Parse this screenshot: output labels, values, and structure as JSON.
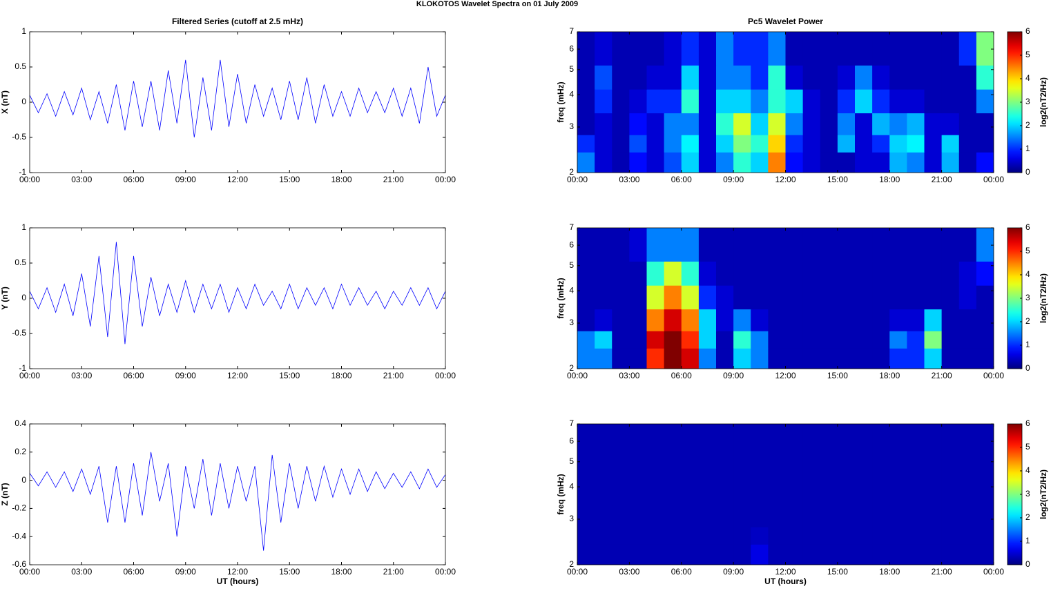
{
  "title": "KLOKOTOS Wavelet Spectra on 01 July      2009",
  "chart_data": [
    {
      "type": "line",
      "title": "Filtered Series (cutoff at 2.5 mHz)",
      "ylabel": "X (nT)",
      "color": "#0000ff",
      "x": [
        0,
        0.5,
        1,
        1.5,
        2,
        2.5,
        3,
        3.5,
        4,
        4.5,
        5,
        5.5,
        6,
        6.5,
        7,
        7.5,
        8,
        8.5,
        9,
        9.5,
        10,
        10.5,
        11,
        11.5,
        12,
        12.5,
        13,
        13.5,
        14,
        14.5,
        15,
        15.5,
        16,
        16.5,
        17,
        17.5,
        18,
        18.5,
        19,
        19.5,
        20,
        20.5,
        21,
        21.5,
        22,
        22.5,
        23,
        23.5,
        24
      ],
      "values": [
        0.1,
        -0.15,
        0.12,
        -0.2,
        0.15,
        -0.18,
        0.2,
        -0.25,
        0.15,
        -0.3,
        0.25,
        -0.4,
        0.3,
        -0.35,
        0.3,
        -0.4,
        0.45,
        -0.3,
        0.6,
        -0.5,
        0.35,
        -0.4,
        0.6,
        -0.35,
        0.4,
        -0.3,
        0.25,
        -0.2,
        0.2,
        -0.25,
        0.3,
        -0.25,
        0.35,
        -0.3,
        0.25,
        -0.2,
        0.15,
        -0.2,
        0.2,
        -0.15,
        0.15,
        -0.15,
        0.2,
        -0.2,
        0.2,
        -0.3,
        0.5,
        -0.2,
        0.1
      ],
      "xlim": [
        0,
        24
      ],
      "xticks": [
        {
          "value": 0,
          "label": "00:00"
        },
        {
          "value": 3,
          "label": "03:00"
        },
        {
          "value": 6,
          "label": "06:00"
        },
        {
          "value": 9,
          "label": "09:00"
        },
        {
          "value": 12,
          "label": "12:00"
        },
        {
          "value": 15,
          "label": "15:00"
        },
        {
          "value": 18,
          "label": "18:00"
        },
        {
          "value": 21,
          "label": "21:00"
        },
        {
          "value": 24,
          "label": "00:00"
        }
      ],
      "ylim": [
        -1,
        1
      ],
      "yticks": [
        -1,
        -0.5,
        0,
        0.5,
        1
      ]
    },
    {
      "type": "heatmap",
      "title": "Pc5 Wavelet Power",
      "ylabel": "freq (mHz)",
      "colorbar_label": "log2(nT2/Hz)",
      "xbins": [
        0,
        1,
        2,
        3,
        4,
        5,
        6,
        7,
        8,
        9,
        10,
        11,
        12,
        13,
        14,
        15,
        16,
        17,
        18,
        19,
        20,
        21,
        22,
        23,
        24
      ],
      "ybins": [
        2,
        2.4,
        2.8,
        3.4,
        4.2,
        5.2,
        7
      ],
      "values": [
        [
          1.5,
          0.5,
          0.3,
          0.8,
          0.5,
          1.2,
          2.0,
          0.5,
          1.5,
          2.5,
          2.0,
          4.5,
          0.8,
          0.5,
          0.3,
          0.3,
          0.5,
          0.5,
          1.8,
          1.5,
          0.5,
          1.8,
          0.3,
          0.8
        ],
        [
          1.0,
          0.5,
          0.3,
          1.2,
          0.5,
          1.5,
          2.2,
          0.5,
          2.0,
          3.0,
          2.5,
          4.0,
          1.0,
          0.5,
          0.3,
          1.8,
          0.5,
          1.0,
          2.0,
          2.2,
          0.5,
          2.0,
          0.3,
          0.3
        ],
        [
          0.3,
          0.5,
          0.3,
          0.8,
          0.5,
          1.5,
          1.5,
          0.5,
          2.5,
          3.5,
          2.0,
          3.5,
          1.5,
          0.5,
          0.3,
          1.5,
          0.5,
          1.8,
          1.5,
          1.8,
          0.5,
          0.5,
          0.3,
          0.3
        ],
        [
          0.3,
          1.0,
          0.3,
          0.5,
          1.0,
          1.0,
          2.5,
          0.5,
          2.0,
          2.0,
          1.5,
          2.5,
          2.0,
          0.5,
          0.3,
          1.0,
          2.0,
          1.0,
          0.5,
          0.5,
          0.3,
          0.3,
          0.3,
          1.5
        ],
        [
          0.3,
          1.2,
          0.3,
          0.3,
          0.5,
          0.5,
          2.0,
          0.5,
          1.5,
          1.5,
          1.0,
          2.5,
          0.5,
          0.3,
          0.3,
          0.5,
          1.5,
          0.5,
          0.3,
          0.3,
          0.3,
          0.3,
          0.3,
          2.5
        ],
        [
          0.3,
          0.5,
          0.3,
          0.3,
          0.3,
          0.5,
          1.0,
          0.5,
          1.5,
          1.0,
          1.0,
          1.5,
          0.3,
          0.3,
          0.3,
          0.3,
          0.3,
          0.3,
          0.3,
          0.3,
          0.3,
          0.3,
          1.0,
          3.0
        ]
      ],
      "xlim": [
        0,
        24
      ],
      "xticks": [
        {
          "value": 0,
          "label": "00:00"
        },
        {
          "value": 3,
          "label": "03:00"
        },
        {
          "value": 6,
          "label": "06:00"
        },
        {
          "value": 9,
          "label": "09:00"
        },
        {
          "value": 12,
          "label": "12:00"
        },
        {
          "value": 15,
          "label": "15:00"
        },
        {
          "value": 18,
          "label": "18:00"
        },
        {
          "value": 21,
          "label": "21:00"
        },
        {
          "value": 24,
          "label": "00:00"
        }
      ],
      "ylim": [
        2,
        7
      ],
      "yticks": [
        2,
        3,
        4,
        5,
        6,
        7
      ],
      "log_y": true,
      "clim": [
        0,
        6
      ],
      "cticks": [
        0,
        1,
        2,
        3,
        4,
        5,
        6
      ],
      "colormap": "jet"
    },
    {
      "type": "line",
      "ylabel": "Y (nT)",
      "color": "#0000ff",
      "x": [
        0,
        0.5,
        1,
        1.5,
        2,
        2.5,
        3,
        3.5,
        4,
        4.5,
        5,
        5.5,
        6,
        6.5,
        7,
        7.5,
        8,
        8.5,
        9,
        9.5,
        10,
        10.5,
        11,
        11.5,
        12,
        12.5,
        13,
        13.5,
        14,
        14.5,
        15,
        15.5,
        16,
        16.5,
        17,
        17.5,
        18,
        18.5,
        19,
        19.5,
        20,
        20.5,
        21,
        21.5,
        22,
        22.5,
        23,
        23.5,
        24
      ],
      "values": [
        0.1,
        -0.15,
        0.15,
        -0.2,
        0.2,
        -0.25,
        0.35,
        -0.4,
        0.6,
        -0.55,
        0.8,
        -0.65,
        0.6,
        -0.4,
        0.3,
        -0.25,
        0.2,
        -0.2,
        0.25,
        -0.2,
        0.2,
        -0.15,
        0.2,
        -0.2,
        0.15,
        -0.15,
        0.2,
        -0.1,
        0.1,
        -0.15,
        0.2,
        -0.15,
        0.15,
        -0.1,
        0.15,
        -0.15,
        0.2,
        -0.1,
        0.15,
        -0.1,
        0.1,
        -0.15,
        0.1,
        -0.1,
        0.15,
        -0.1,
        0.15,
        -0.15,
        0.1
      ],
      "xlim": [
        0,
        24
      ],
      "xticks": [
        {
          "value": 0,
          "label": "00:00"
        },
        {
          "value": 3,
          "label": "03:00"
        },
        {
          "value": 6,
          "label": "06:00"
        },
        {
          "value": 9,
          "label": "09:00"
        },
        {
          "value": 12,
          "label": "12:00"
        },
        {
          "value": 15,
          "label": "15:00"
        },
        {
          "value": 18,
          "label": "18:00"
        },
        {
          "value": 21,
          "label": "21:00"
        },
        {
          "value": 24,
          "label": "00:00"
        }
      ],
      "ylim": [
        -1,
        1
      ],
      "yticks": [
        -1,
        -0.5,
        0,
        0.5,
        1
      ]
    },
    {
      "type": "heatmap",
      "ylabel": "freq (mHz)",
      "colorbar_label": "log2(nT2/Hz)",
      "xbins": [
        0,
        1,
        2,
        3,
        4,
        5,
        6,
        7,
        8,
        9,
        10,
        11,
        12,
        13,
        14,
        15,
        16,
        17,
        18,
        19,
        20,
        21,
        22,
        23,
        24
      ],
      "ybins": [
        2,
        2.4,
        2.8,
        3.4,
        4.2,
        5.2,
        7
      ],
      "values": [
        [
          1.5,
          1.5,
          0.3,
          0.3,
          5.0,
          6.0,
          5.5,
          1.5,
          0.3,
          2.0,
          1.5,
          0.3,
          0.3,
          0.3,
          0.3,
          0.3,
          0.3,
          0.3,
          1.0,
          1.0,
          2.0,
          0.3,
          0.3,
          0.3
        ],
        [
          1.5,
          2.0,
          0.3,
          0.3,
          5.5,
          6.0,
          5.0,
          2.0,
          0.3,
          2.5,
          1.5,
          0.3,
          0.3,
          0.3,
          0.3,
          0.3,
          0.3,
          0.3,
          1.5,
          1.0,
          3.0,
          0.3,
          0.3,
          0.3
        ],
        [
          0.3,
          0.5,
          0.3,
          0.3,
          4.5,
          5.5,
          4.5,
          2.0,
          0.5,
          1.5,
          0.5,
          0.3,
          0.3,
          0.3,
          0.3,
          0.3,
          0.3,
          0.3,
          0.5,
          0.5,
          2.0,
          0.3,
          0.3,
          0.3
        ],
        [
          0.3,
          0.3,
          0.3,
          0.3,
          3.5,
          4.5,
          3.5,
          1.0,
          0.5,
          0.3,
          0.3,
          0.3,
          0.3,
          0.3,
          0.3,
          0.3,
          0.3,
          0.3,
          0.3,
          0.3,
          0.3,
          0.3,
          0.5,
          0.3
        ],
        [
          0.3,
          0.3,
          0.3,
          0.3,
          2.5,
          3.5,
          2.5,
          0.5,
          0.3,
          0.3,
          0.3,
          0.3,
          0.3,
          0.3,
          0.3,
          0.3,
          0.3,
          0.3,
          0.3,
          0.3,
          0.3,
          0.3,
          0.5,
          0.8
        ],
        [
          0.3,
          0.3,
          0.3,
          0.5,
          1.5,
          1.5,
          1.5,
          0.3,
          0.3,
          0.3,
          0.3,
          0.3,
          0.3,
          0.3,
          0.3,
          0.3,
          0.3,
          0.3,
          0.3,
          0.3,
          0.3,
          0.3,
          0.3,
          1.5
        ]
      ],
      "xlim": [
        0,
        24
      ],
      "xticks": [
        {
          "value": 0,
          "label": "00:00"
        },
        {
          "value": 3,
          "label": "03:00"
        },
        {
          "value": 6,
          "label": "06:00"
        },
        {
          "value": 9,
          "label": "09:00"
        },
        {
          "value": 12,
          "label": "12:00"
        },
        {
          "value": 15,
          "label": "15:00"
        },
        {
          "value": 18,
          "label": "18:00"
        },
        {
          "value": 21,
          "label": "21:00"
        },
        {
          "value": 24,
          "label": "00:00"
        }
      ],
      "ylim": [
        2,
        7
      ],
      "yticks": [
        2,
        3,
        4,
        5,
        6,
        7
      ],
      "log_y": true,
      "clim": [
        0,
        6
      ],
      "cticks": [
        0,
        1,
        2,
        3,
        4,
        5,
        6
      ],
      "colormap": "jet"
    },
    {
      "type": "line",
      "ylabel": "Z (nT)",
      "xlabel": "UT (hours)",
      "color": "#0000ff",
      "x": [
        0,
        0.5,
        1,
        1.5,
        2,
        2.5,
        3,
        3.5,
        4,
        4.5,
        5,
        5.5,
        6,
        6.5,
        7,
        7.5,
        8,
        8.5,
        9,
        9.5,
        10,
        10.5,
        11,
        11.5,
        12,
        12.5,
        13,
        13.5,
        14,
        14.5,
        15,
        15.5,
        16,
        16.5,
        17,
        17.5,
        18,
        18.5,
        19,
        19.5,
        20,
        20.5,
        21,
        21.5,
        22,
        22.5,
        23,
        23.5,
        24
      ],
      "values": [
        0.05,
        -0.04,
        0.06,
        -0.05,
        0.06,
        -0.08,
        0.08,
        -0.1,
        0.1,
        -0.3,
        0.1,
        -0.3,
        0.12,
        -0.25,
        0.2,
        -0.15,
        0.12,
        -0.4,
        0.1,
        -0.2,
        0.15,
        -0.25,
        0.12,
        -0.2,
        0.1,
        -0.15,
        0.1,
        -0.5,
        0.18,
        -0.3,
        0.12,
        -0.2,
        0.1,
        -0.15,
        0.1,
        -0.12,
        0.08,
        -0.1,
        0.08,
        -0.08,
        0.06,
        -0.06,
        0.05,
        -0.05,
        0.06,
        -0.06,
        0.08,
        -0.05,
        0.04
      ],
      "xlim": [
        0,
        24
      ],
      "xticks": [
        {
          "value": 0,
          "label": "00:00"
        },
        {
          "value": 3,
          "label": "03:00"
        },
        {
          "value": 6,
          "label": "06:00"
        },
        {
          "value": 9,
          "label": "09:00"
        },
        {
          "value": 12,
          "label": "12:00"
        },
        {
          "value": 15,
          "label": "15:00"
        },
        {
          "value": 18,
          "label": "18:00"
        },
        {
          "value": 21,
          "label": "21:00"
        },
        {
          "value": 24,
          "label": "00:00"
        }
      ],
      "ylim": [
        -0.6,
        0.4
      ],
      "yticks": [
        -0.6,
        -0.4,
        -0.2,
        0,
        0.2,
        0.4
      ]
    },
    {
      "type": "heatmap",
      "ylabel": "freq (mHz)",
      "xlabel": "UT (hours)",
      "colorbar_label": "log2(nT2/Hz)",
      "xbins": [
        0,
        1,
        2,
        3,
        4,
        5,
        6,
        7,
        8,
        9,
        10,
        11,
        12,
        13,
        14,
        15,
        16,
        17,
        18,
        19,
        20,
        21,
        22,
        23,
        24
      ],
      "ybins": [
        2,
        2.4,
        2.8,
        3.4,
        4.2,
        5.2,
        7
      ],
      "values": [
        [
          0.3,
          0.3,
          0.3,
          0.3,
          0.3,
          0.3,
          0.3,
          0.3,
          0.3,
          0.3,
          0.6,
          0.3,
          0.3,
          0.3,
          0.3,
          0.3,
          0.3,
          0.3,
          0.3,
          0.3,
          0.3,
          0.3,
          0.3,
          0.3
        ],
        [
          0.3,
          0.3,
          0.3,
          0.3,
          0.3,
          0.3,
          0.3,
          0.3,
          0.3,
          0.3,
          0.4,
          0.3,
          0.3,
          0.3,
          0.3,
          0.3,
          0.3,
          0.3,
          0.3,
          0.3,
          0.3,
          0.3,
          0.3,
          0.3
        ],
        [
          0.3,
          0.3,
          0.3,
          0.3,
          0.3,
          0.3,
          0.3,
          0.3,
          0.3,
          0.3,
          0.3,
          0.3,
          0.3,
          0.3,
          0.3,
          0.3,
          0.3,
          0.3,
          0.3,
          0.3,
          0.3,
          0.3,
          0.3,
          0.3
        ],
        [
          0.3,
          0.3,
          0.3,
          0.3,
          0.3,
          0.3,
          0.3,
          0.3,
          0.3,
          0.3,
          0.3,
          0.3,
          0.3,
          0.3,
          0.3,
          0.3,
          0.3,
          0.3,
          0.3,
          0.3,
          0.3,
          0.3,
          0.3,
          0.3
        ],
        [
          0.3,
          0.3,
          0.3,
          0.3,
          0.3,
          0.3,
          0.3,
          0.3,
          0.3,
          0.3,
          0.3,
          0.3,
          0.3,
          0.3,
          0.3,
          0.3,
          0.3,
          0.3,
          0.3,
          0.3,
          0.3,
          0.3,
          0.3,
          0.3
        ],
        [
          0.3,
          0.3,
          0.3,
          0.3,
          0.3,
          0.3,
          0.3,
          0.3,
          0.3,
          0.3,
          0.3,
          0.3,
          0.3,
          0.3,
          0.3,
          0.3,
          0.3,
          0.3,
          0.3,
          0.3,
          0.3,
          0.3,
          0.3,
          0.3
        ]
      ],
      "xlim": [
        0,
        24
      ],
      "xticks": [
        {
          "value": 0,
          "label": "00:00"
        },
        {
          "value": 3,
          "label": "03:00"
        },
        {
          "value": 6,
          "label": "06:00"
        },
        {
          "value": 9,
          "label": "09:00"
        },
        {
          "value": 12,
          "label": "12:00"
        },
        {
          "value": 15,
          "label": "15:00"
        },
        {
          "value": 18,
          "label": "18:00"
        },
        {
          "value": 21,
          "label": "21:00"
        },
        {
          "value": 24,
          "label": "00:00"
        }
      ],
      "ylim": [
        2,
        7
      ],
      "yticks": [
        2,
        3,
        4,
        5,
        6,
        7
      ],
      "log_y": true,
      "clim": [
        0,
        6
      ],
      "cticks": [
        0,
        1,
        2,
        3,
        4,
        5,
        6
      ],
      "colormap": "jet"
    }
  ]
}
